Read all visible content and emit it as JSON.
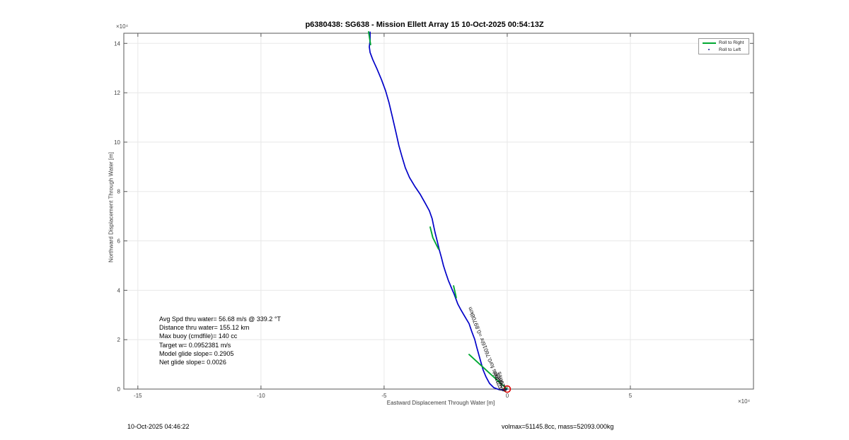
{
  "figure": {
    "title": "p6380438: SG638 - Mission Ellett Array 15 10-Oct-2025 00:54:13Z",
    "xlabel": "Eastward Displacement Through Water [m]",
    "ylabel": "Northward Displacement Through Water [m]",
    "x_exponent": "×10⁴",
    "y_exponent": "×10⁴"
  },
  "legend": {
    "items": [
      {
        "label": "Roll to Right",
        "swatch": "line",
        "color": "#00a832"
      },
      {
        "label": "Roll to Left",
        "swatch": "dot",
        "color": "#1a1a8c"
      }
    ]
  },
  "stats_box": {
    "lines": [
      "Avg Spd thru water= 56.68 m/s @ 339.2 °T",
      "Distance thru water= 155.12 km",
      "Max buoy (cmdfile)= 140 cc",
      "Target w= 0.0952381 m/s",
      "Model glide slope= 0.2905",
      "Net glide slope= 0.0026"
    ]
  },
  "track_labels": {
    "main": "0.33m/s for0.76016hr =0.89708km",
    "overlap": [
      "0.29m/s",
      "0.31m/s",
      "0.26m/s"
    ]
  },
  "footer": {
    "left": "10-Oct-2025 04:46:22",
    "right": "volmax=51145.8cc, mass=52093.000kg"
  },
  "chart_data": {
    "type": "line",
    "title": "p6380438: SG638 - Mission Ellett Array 15 10-Oct-2025 00:54:13Z",
    "xlabel": "Eastward Displacement Through Water [m]",
    "ylabel": "Northward Displacement Through Water [m]",
    "units_multiplier": 10000,
    "xlim": [
      -15.57,
      10.0
    ],
    "ylim": [
      0,
      14.41
    ],
    "xticks": [
      -15,
      -10,
      -5,
      0,
      5
    ],
    "yticks": [
      0,
      2,
      4,
      6,
      8,
      10,
      12,
      14
    ],
    "grid": true,
    "legend_position": "northeast",
    "legend_entries": [
      "Roll to Right",
      "Roll to Left"
    ],
    "series": [
      {
        "name": "track",
        "color": "#0000c8",
        "width": 1.7,
        "points": [
          [
            -5.57,
            14.46
          ],
          [
            -5.57,
            14.12
          ],
          [
            -5.6,
            13.86
          ],
          [
            -5.57,
            13.63
          ],
          [
            -5.46,
            13.34
          ],
          [
            -5.29,
            12.97
          ],
          [
            -5.11,
            12.54
          ],
          [
            -4.94,
            12.08
          ],
          [
            -4.8,
            11.59
          ],
          [
            -4.66,
            11.01
          ],
          [
            -4.51,
            10.35
          ],
          [
            -4.4,
            9.86
          ],
          [
            -4.28,
            9.43
          ],
          [
            -4.14,
            8.97
          ],
          [
            -3.97,
            8.57
          ],
          [
            -3.76,
            8.22
          ],
          [
            -3.53,
            7.88
          ],
          [
            -3.33,
            7.53
          ],
          [
            -3.16,
            7.22
          ],
          [
            -3.05,
            6.9
          ],
          [
            -2.99,
            6.61
          ],
          [
            -2.93,
            6.33
          ],
          [
            -2.84,
            5.98
          ],
          [
            -2.76,
            5.64
          ],
          [
            -2.67,
            5.32
          ],
          [
            -2.59,
            5.0
          ],
          [
            -2.5,
            4.72
          ],
          [
            -2.39,
            4.4
          ],
          [
            -2.27,
            4.11
          ],
          [
            -2.16,
            3.85
          ],
          [
            -2.01,
            3.45
          ],
          [
            -1.87,
            3.19
          ],
          [
            -1.7,
            2.9
          ],
          [
            -1.55,
            2.65
          ],
          [
            -1.44,
            2.33
          ],
          [
            -1.32,
            2.01
          ],
          [
            -1.24,
            1.7
          ],
          [
            -1.15,
            1.38
          ],
          [
            -1.06,
            1.06
          ],
          [
            -0.98,
            0.78
          ],
          [
            -0.86,
            0.49
          ],
          [
            -0.72,
            0.23
          ],
          [
            -0.55,
            0.06
          ],
          [
            -0.34,
            -0.02
          ],
          [
            -0.17,
            -0.04
          ],
          [
            -0.06,
            -0.02
          ],
          [
            0,
            0
          ]
        ]
      },
      {
        "name": "roll-to-right-1",
        "color": "#00a832",
        "width": 1.9,
        "points": [
          [
            -5.63,
            14.47
          ],
          [
            -5.55,
            13.95
          ]
        ]
      },
      {
        "name": "roll-to-right-2",
        "color": "#00a832",
        "width": 1.9,
        "points": [
          [
            -3.13,
            6.56
          ],
          [
            -3.02,
            6.13
          ],
          [
            -2.79,
            5.67
          ]
        ]
      },
      {
        "name": "roll-to-right-3",
        "color": "#00a832",
        "width": 1.9,
        "points": [
          [
            -2.18,
            4.18
          ],
          [
            -2.07,
            3.7
          ]
        ]
      },
      {
        "name": "roll-to-right-4",
        "color": "#00a832",
        "width": 1.9,
        "points": [
          [
            -1.55,
            1.4
          ],
          [
            -0.02,
            0.01
          ]
        ]
      }
    ],
    "origin_marker": {
      "x": 0,
      "y": 0,
      "color": "#e00000",
      "radius_px": 4.5
    }
  }
}
